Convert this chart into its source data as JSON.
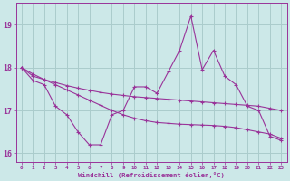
{
  "xlabel": "Windchill (Refroidissement éolien,°C)",
  "background_color": "#cce8e8",
  "grid_color": "#aacccc",
  "line_color": "#993399",
  "x": [
    0,
    1,
    2,
    3,
    4,
    5,
    6,
    7,
    8,
    9,
    10,
    11,
    12,
    13,
    14,
    15,
    16,
    17,
    18,
    19,
    20,
    21,
    22,
    23
  ],
  "line1_jagged": [
    18.0,
    17.7,
    17.6,
    17.1,
    16.9,
    16.5,
    16.2,
    16.2,
    16.9,
    17.0,
    17.55,
    17.55,
    17.4,
    17.9,
    18.4,
    19.2,
    17.95,
    18.4,
    17.8,
    17.6,
    17.1,
    17.0,
    16.4,
    16.3
  ],
  "line2_diagonal": [
    18.0,
    17.85,
    17.72,
    17.6,
    17.48,
    17.36,
    17.24,
    17.12,
    17.0,
    16.9,
    16.82,
    16.76,
    16.72,
    16.7,
    16.68,
    16.67,
    16.66,
    16.65,
    16.63,
    16.6,
    16.55,
    16.5,
    16.45,
    16.35
  ],
  "line3_flat": [
    18.0,
    17.8,
    17.72,
    17.65,
    17.58,
    17.52,
    17.47,
    17.42,
    17.38,
    17.35,
    17.32,
    17.3,
    17.28,
    17.26,
    17.24,
    17.22,
    17.2,
    17.18,
    17.16,
    17.14,
    17.12,
    17.1,
    17.05,
    17.0
  ],
  "ylim": [
    15.8,
    19.5
  ],
  "yticks": [
    16,
    17,
    18,
    19
  ],
  "xlim": [
    -0.5,
    23.5
  ],
  "xticks": [
    0,
    1,
    2,
    3,
    4,
    5,
    6,
    7,
    8,
    9,
    10,
    11,
    12,
    13,
    14,
    15,
    16,
    17,
    18,
    19,
    20,
    21,
    22,
    23
  ]
}
